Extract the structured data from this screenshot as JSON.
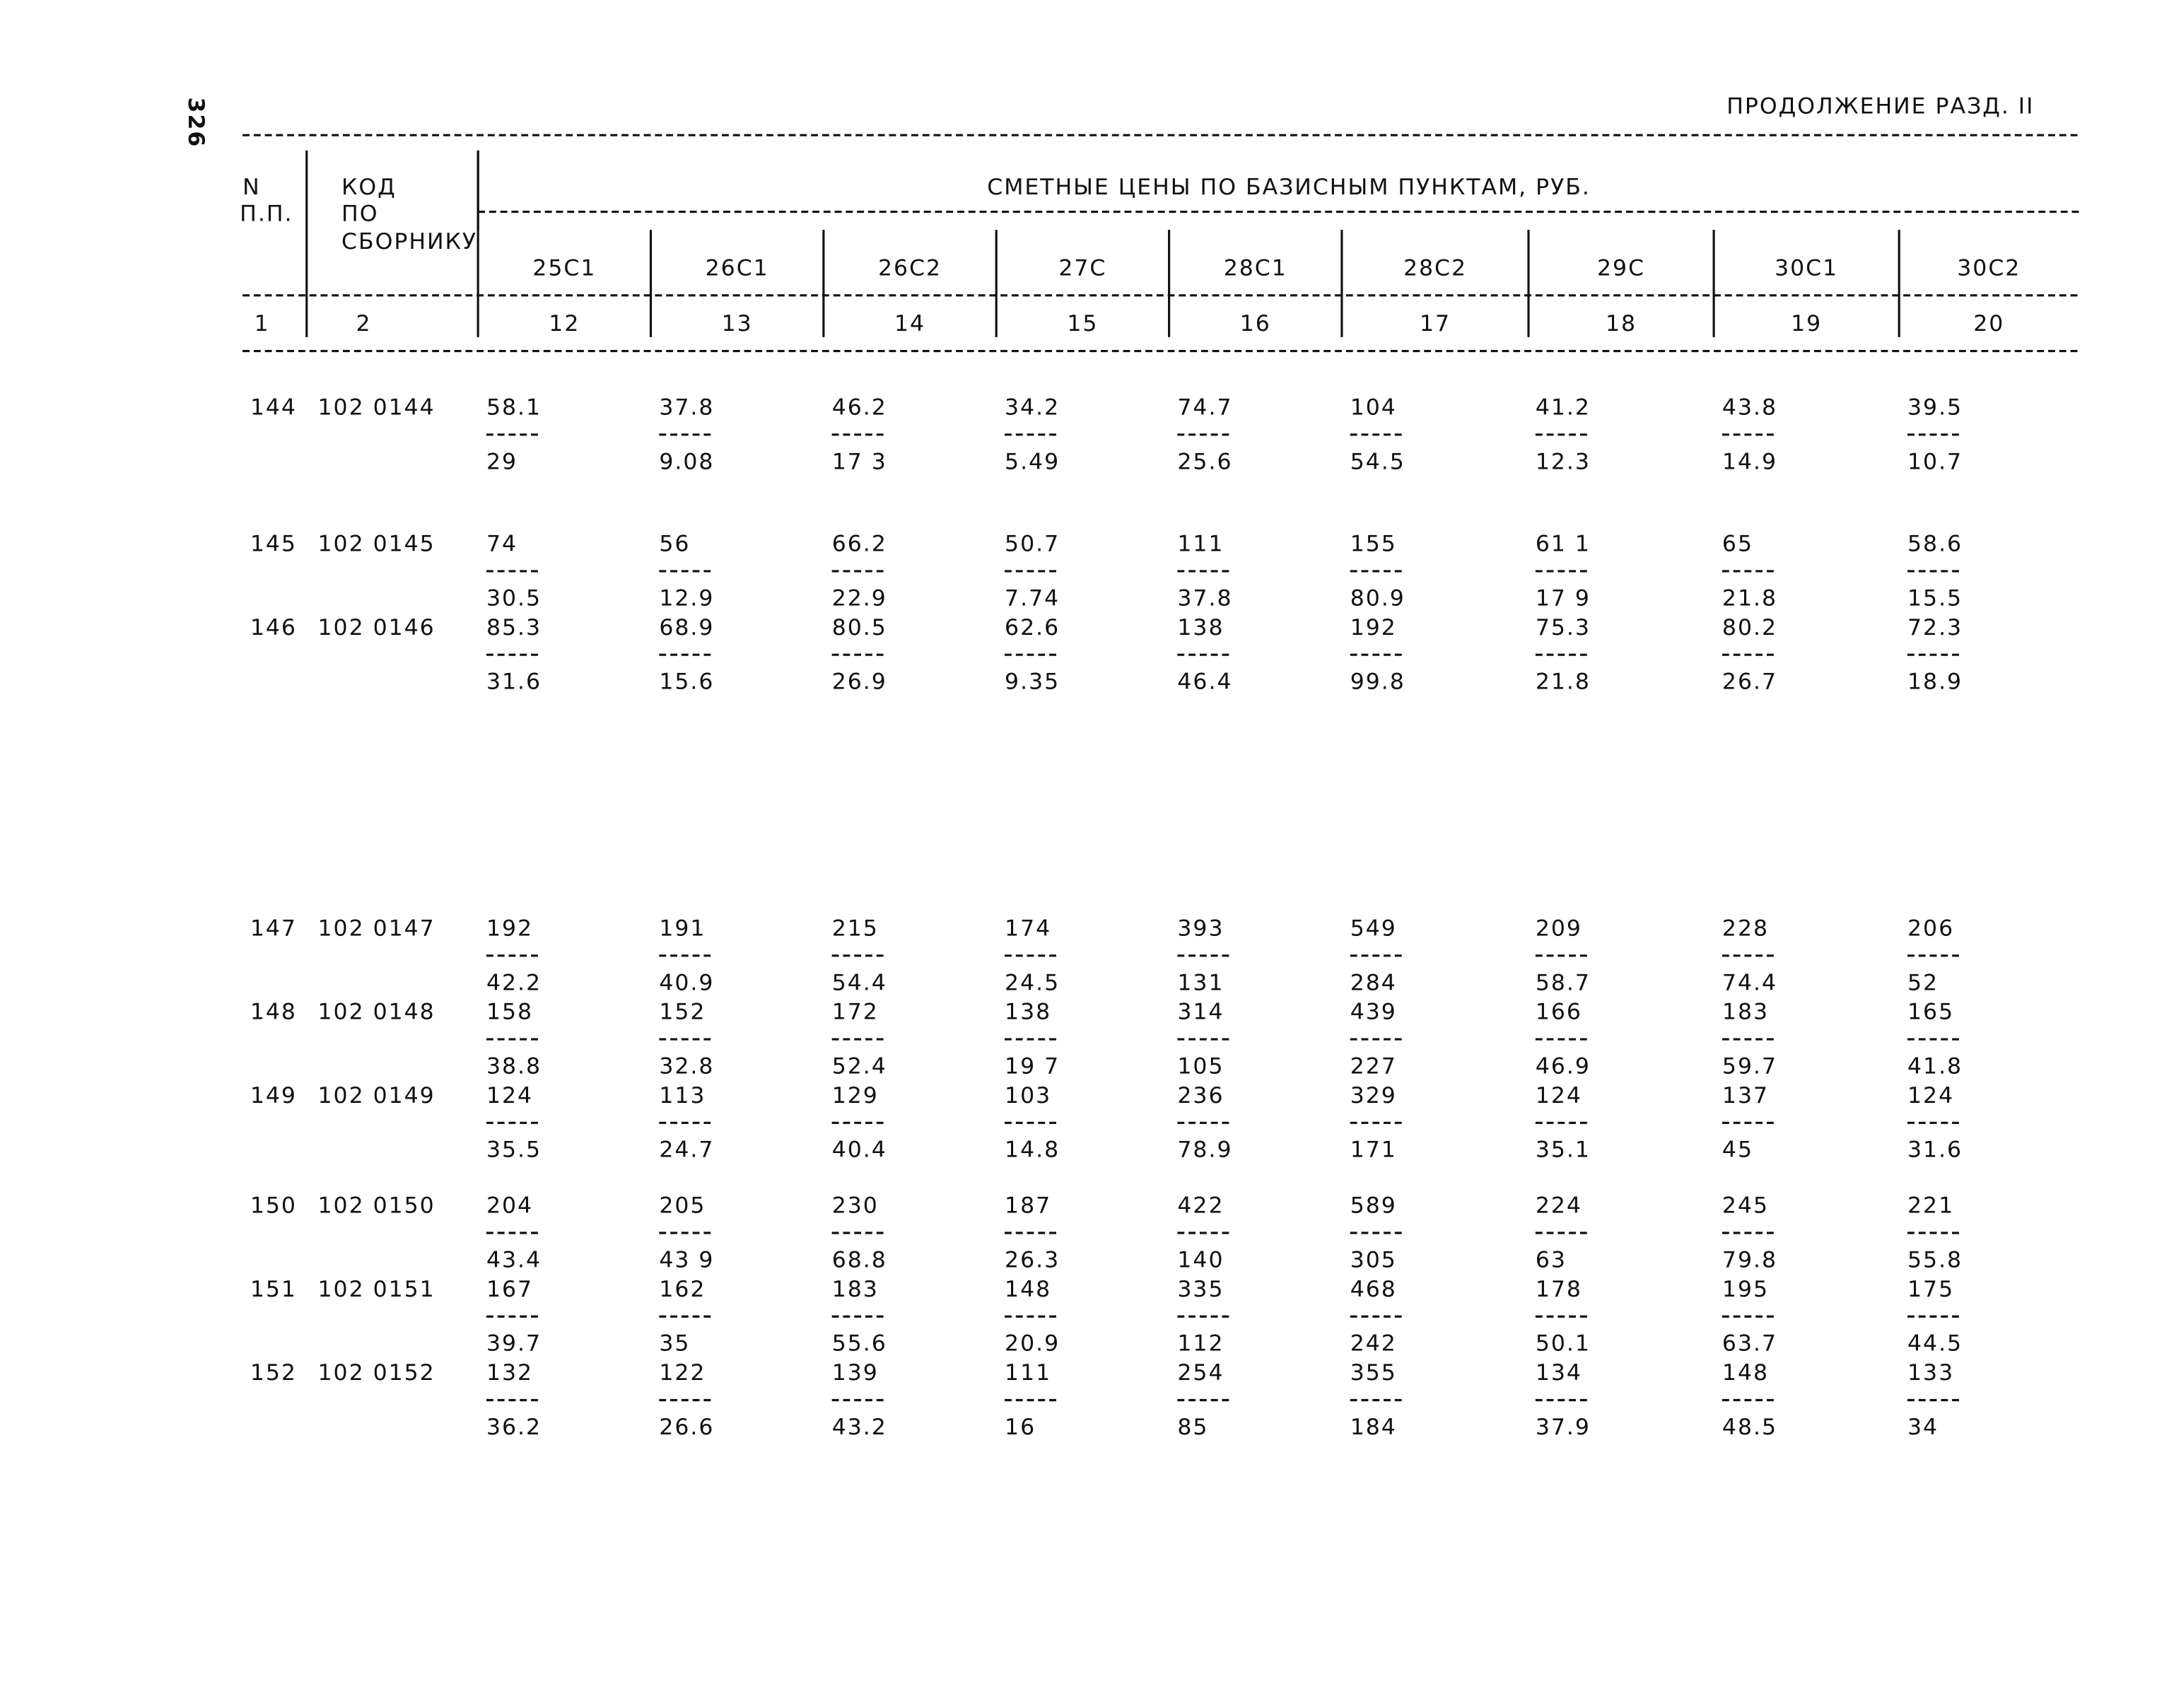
{
  "page_number": "326",
  "header": {
    "title": "ПРОДОЛЖЕНИЕ РАЗД. II"
  },
  "table": {
    "head": {
      "n": [
        "N",
        "П.П."
      ],
      "code": [
        "КОД",
        "ПО",
        "СБОРНИКУ"
      ],
      "group": "СМЕТНЫЕ ЦЕНЫ ПО БАЗИСНЫМ ПУНКТАМ, РУБ.",
      "columns": [
        "25С1",
        "26С1",
        "26С2",
        "27С",
        "28С1",
        "28С2",
        "29С",
        "30С1",
        "30С2"
      ],
      "numbers": [
        "1",
        "2",
        "12",
        "13",
        "14",
        "15",
        "16",
        "17",
        "18",
        "19",
        "20"
      ]
    },
    "rows": [
      {
        "n": "144",
        "code": "102 0144",
        "values": [
          [
            "58.1",
            "29"
          ],
          [
            "37.8",
            "9.08"
          ],
          [
            "46.2",
            "17 3"
          ],
          [
            "34.2",
            "5.49"
          ],
          [
            "74.7",
            "25.6"
          ],
          [
            "104",
            "54.5"
          ],
          [
            "41.2",
            "12.3"
          ],
          [
            "43.8",
            "14.9"
          ],
          [
            "39.5",
            "10.7"
          ]
        ]
      },
      {
        "n": "145",
        "code": "102 0145",
        "values": [
          [
            "74",
            "30.5"
          ],
          [
            "56",
            "12.9"
          ],
          [
            "66.2",
            "22.9"
          ],
          [
            "50.7",
            "7.74"
          ],
          [
            "111",
            "37.8"
          ],
          [
            "155",
            "80.9"
          ],
          [
            "61 1",
            "17 9"
          ],
          [
            "65",
            "21.8"
          ],
          [
            "58.6",
            "15.5"
          ]
        ]
      },
      {
        "n": "146",
        "code": "102 0146",
        "values": [
          [
            "85.3",
            "31.6"
          ],
          [
            "68.9",
            "15.6"
          ],
          [
            "80.5",
            "26.9"
          ],
          [
            "62.6",
            "9.35"
          ],
          [
            "138",
            "46.4"
          ],
          [
            "192",
            "99.8"
          ],
          [
            "75.3",
            "21.8"
          ],
          [
            "80.2",
            "26.7"
          ],
          [
            "72.3",
            "18.9"
          ]
        ]
      },
      {
        "n": "147",
        "code": "102 0147",
        "values": [
          [
            "192",
            "42.2"
          ],
          [
            "191",
            "40.9"
          ],
          [
            "215",
            "54.4"
          ],
          [
            "174",
            "24.5"
          ],
          [
            "393",
            "131"
          ],
          [
            "549",
            "284"
          ],
          [
            "209",
            "58.7"
          ],
          [
            "228",
            "74.4"
          ],
          [
            "206",
            "52"
          ]
        ]
      },
      {
        "n": "148",
        "code": "102 0148",
        "values": [
          [
            "158",
            "38.8"
          ],
          [
            "152",
            "32.8"
          ],
          [
            "172",
            "52.4"
          ],
          [
            "138",
            "19 7"
          ],
          [
            "314",
            "105"
          ],
          [
            "439",
            "227"
          ],
          [
            "166",
            "46.9"
          ],
          [
            "183",
            "59.7"
          ],
          [
            "165",
            "41.8"
          ]
        ]
      },
      {
        "n": "149",
        "code": "102 0149",
        "values": [
          [
            "124",
            "35.5"
          ],
          [
            "113",
            "24.7"
          ],
          [
            "129",
            "40.4"
          ],
          [
            "103",
            "14.8"
          ],
          [
            "236",
            "78.9"
          ],
          [
            "329",
            "171"
          ],
          [
            "124",
            "35.1"
          ],
          [
            "137",
            "45"
          ],
          [
            "124",
            "31.6"
          ]
        ]
      },
      {
        "n": "150",
        "code": "102 0150",
        "values": [
          [
            "204",
            "43.4"
          ],
          [
            "205",
            "43 9"
          ],
          [
            "230",
            "68.8"
          ],
          [
            "187",
            "26.3"
          ],
          [
            "422",
            "140"
          ],
          [
            "589",
            "305"
          ],
          [
            "224",
            "63"
          ],
          [
            "245",
            "79.8"
          ],
          [
            "221",
            "55.8"
          ]
        ]
      },
      {
        "n": "151",
        "code": "102 0151",
        "values": [
          [
            "167",
            "39.7"
          ],
          [
            "162",
            "35"
          ],
          [
            "183",
            "55.6"
          ],
          [
            "148",
            "20.9"
          ],
          [
            "335",
            "112"
          ],
          [
            "468",
            "242"
          ],
          [
            "178",
            "50.1"
          ],
          [
            "195",
            "63.7"
          ],
          [
            "175",
            "44.5"
          ]
        ]
      },
      {
        "n": "152",
        "code": "102 0152",
        "values": [
          [
            "132",
            "36.2"
          ],
          [
            "122",
            "26.6"
          ],
          [
            "139",
            "43.2"
          ],
          [
            "111",
            "16"
          ],
          [
            "254",
            "85"
          ],
          [
            "355",
            "184"
          ],
          [
            "134",
            "37.9"
          ],
          [
            "148",
            "48.5"
          ],
          [
            "133",
            "34"
          ]
        ]
      }
    ]
  }
}
